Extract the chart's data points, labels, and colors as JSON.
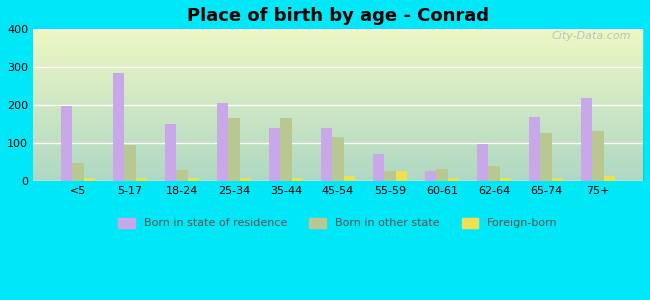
{
  "title": "Place of birth by age - Conrad",
  "categories": [
    "<5",
    "5-17",
    "18-24",
    "25-34",
    "35-44",
    "45-54",
    "55-59",
    "60-61",
    "62-64",
    "65-74",
    "75+"
  ],
  "born_in_state": [
    197,
    285,
    150,
    205,
    140,
    140,
    72,
    25,
    97,
    168,
    218
  ],
  "born_other_state": [
    47,
    95,
    28,
    165,
    165,
    117,
    25,
    30,
    38,
    127,
    132
  ],
  "foreign_born": [
    8,
    7,
    8,
    8,
    7,
    12,
    27,
    8,
    8,
    8,
    12
  ],
  "ylim": [
    0,
    400
  ],
  "yticks": [
    0,
    100,
    200,
    300,
    400
  ],
  "color_state": "#c8a8e8",
  "color_other": "#b8c890",
  "color_foreign": "#f0e050",
  "outer_bg": "#00e8f8",
  "legend_labels": [
    "Born in state of residence",
    "Born in other state",
    "Foreign-born"
  ],
  "watermark": "City-Data.com"
}
